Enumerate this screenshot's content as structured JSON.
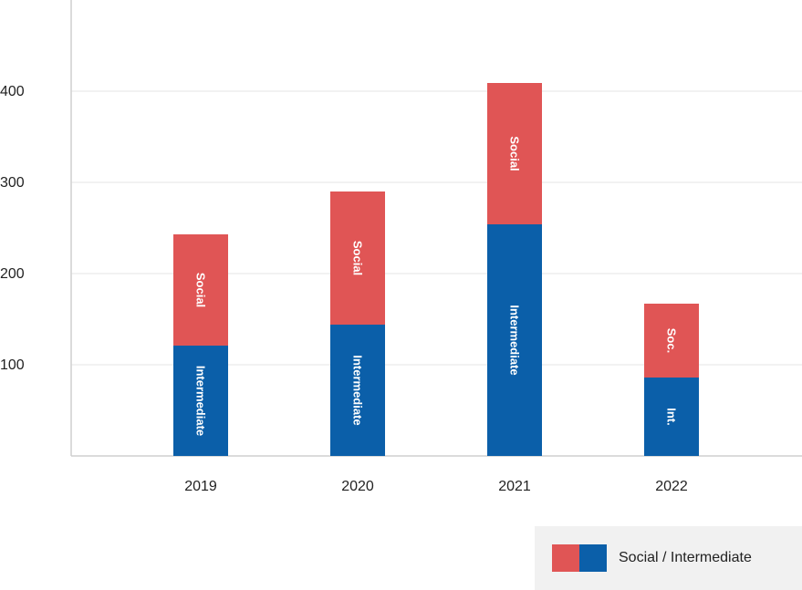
{
  "chart_data": {
    "type": "bar",
    "stacked": true,
    "categories": [
      "2019",
      "2020",
      "2021",
      "2022"
    ],
    "series": [
      {
        "name": "Intermediate",
        "bar_label": [
          "Intermediate",
          "Intermediate",
          "Intermediate",
          "Int."
        ],
        "color": "#0b5fa9",
        "values": [
          121,
          144,
          254,
          86
        ]
      },
      {
        "name": "Social",
        "bar_label": [
          "Social",
          "Social",
          "Social",
          "Soc."
        ],
        "color": "#e05555",
        "values": [
          122,
          146,
          155,
          81
        ]
      }
    ],
    "yticks": [
      100,
      200,
      300,
      400
    ],
    "ylim": [
      0,
      500
    ],
    "grid": true,
    "legend": {
      "label": "Social / Intermediate",
      "position": "bottom-right"
    }
  }
}
